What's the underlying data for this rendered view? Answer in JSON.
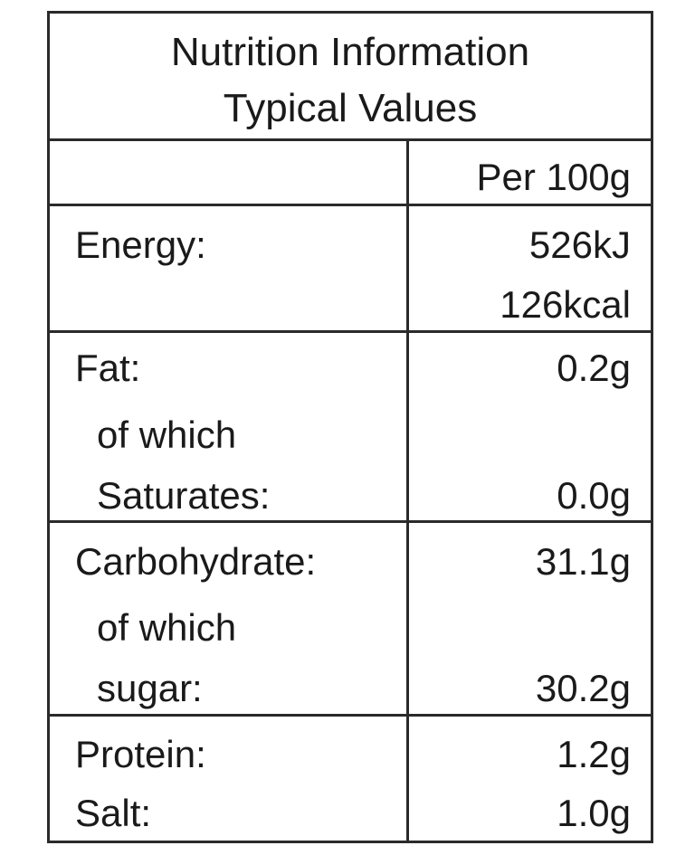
{
  "header": {
    "line1": "Nutrition Information",
    "line2": "Typical Values"
  },
  "column_header": "Per 100g",
  "rows": {
    "energy": {
      "label": "Energy:",
      "value_kj": "526kJ",
      "value_kcal": "126kcal"
    },
    "fat": {
      "label": "Fat:",
      "sub1": "of which",
      "sub2": "Saturates:",
      "value": "0.2g",
      "sub_value": "0.0g"
    },
    "carbohydrate": {
      "label": "Carbohydrate:",
      "sub1": "of which",
      "sub2": "sugar:",
      "value": "31.1g",
      "sub_value": "30.2g"
    },
    "protein": {
      "label": "Protein:",
      "value": "1.2g"
    },
    "salt": {
      "label": "Salt:",
      "value": "1.0g"
    }
  }
}
